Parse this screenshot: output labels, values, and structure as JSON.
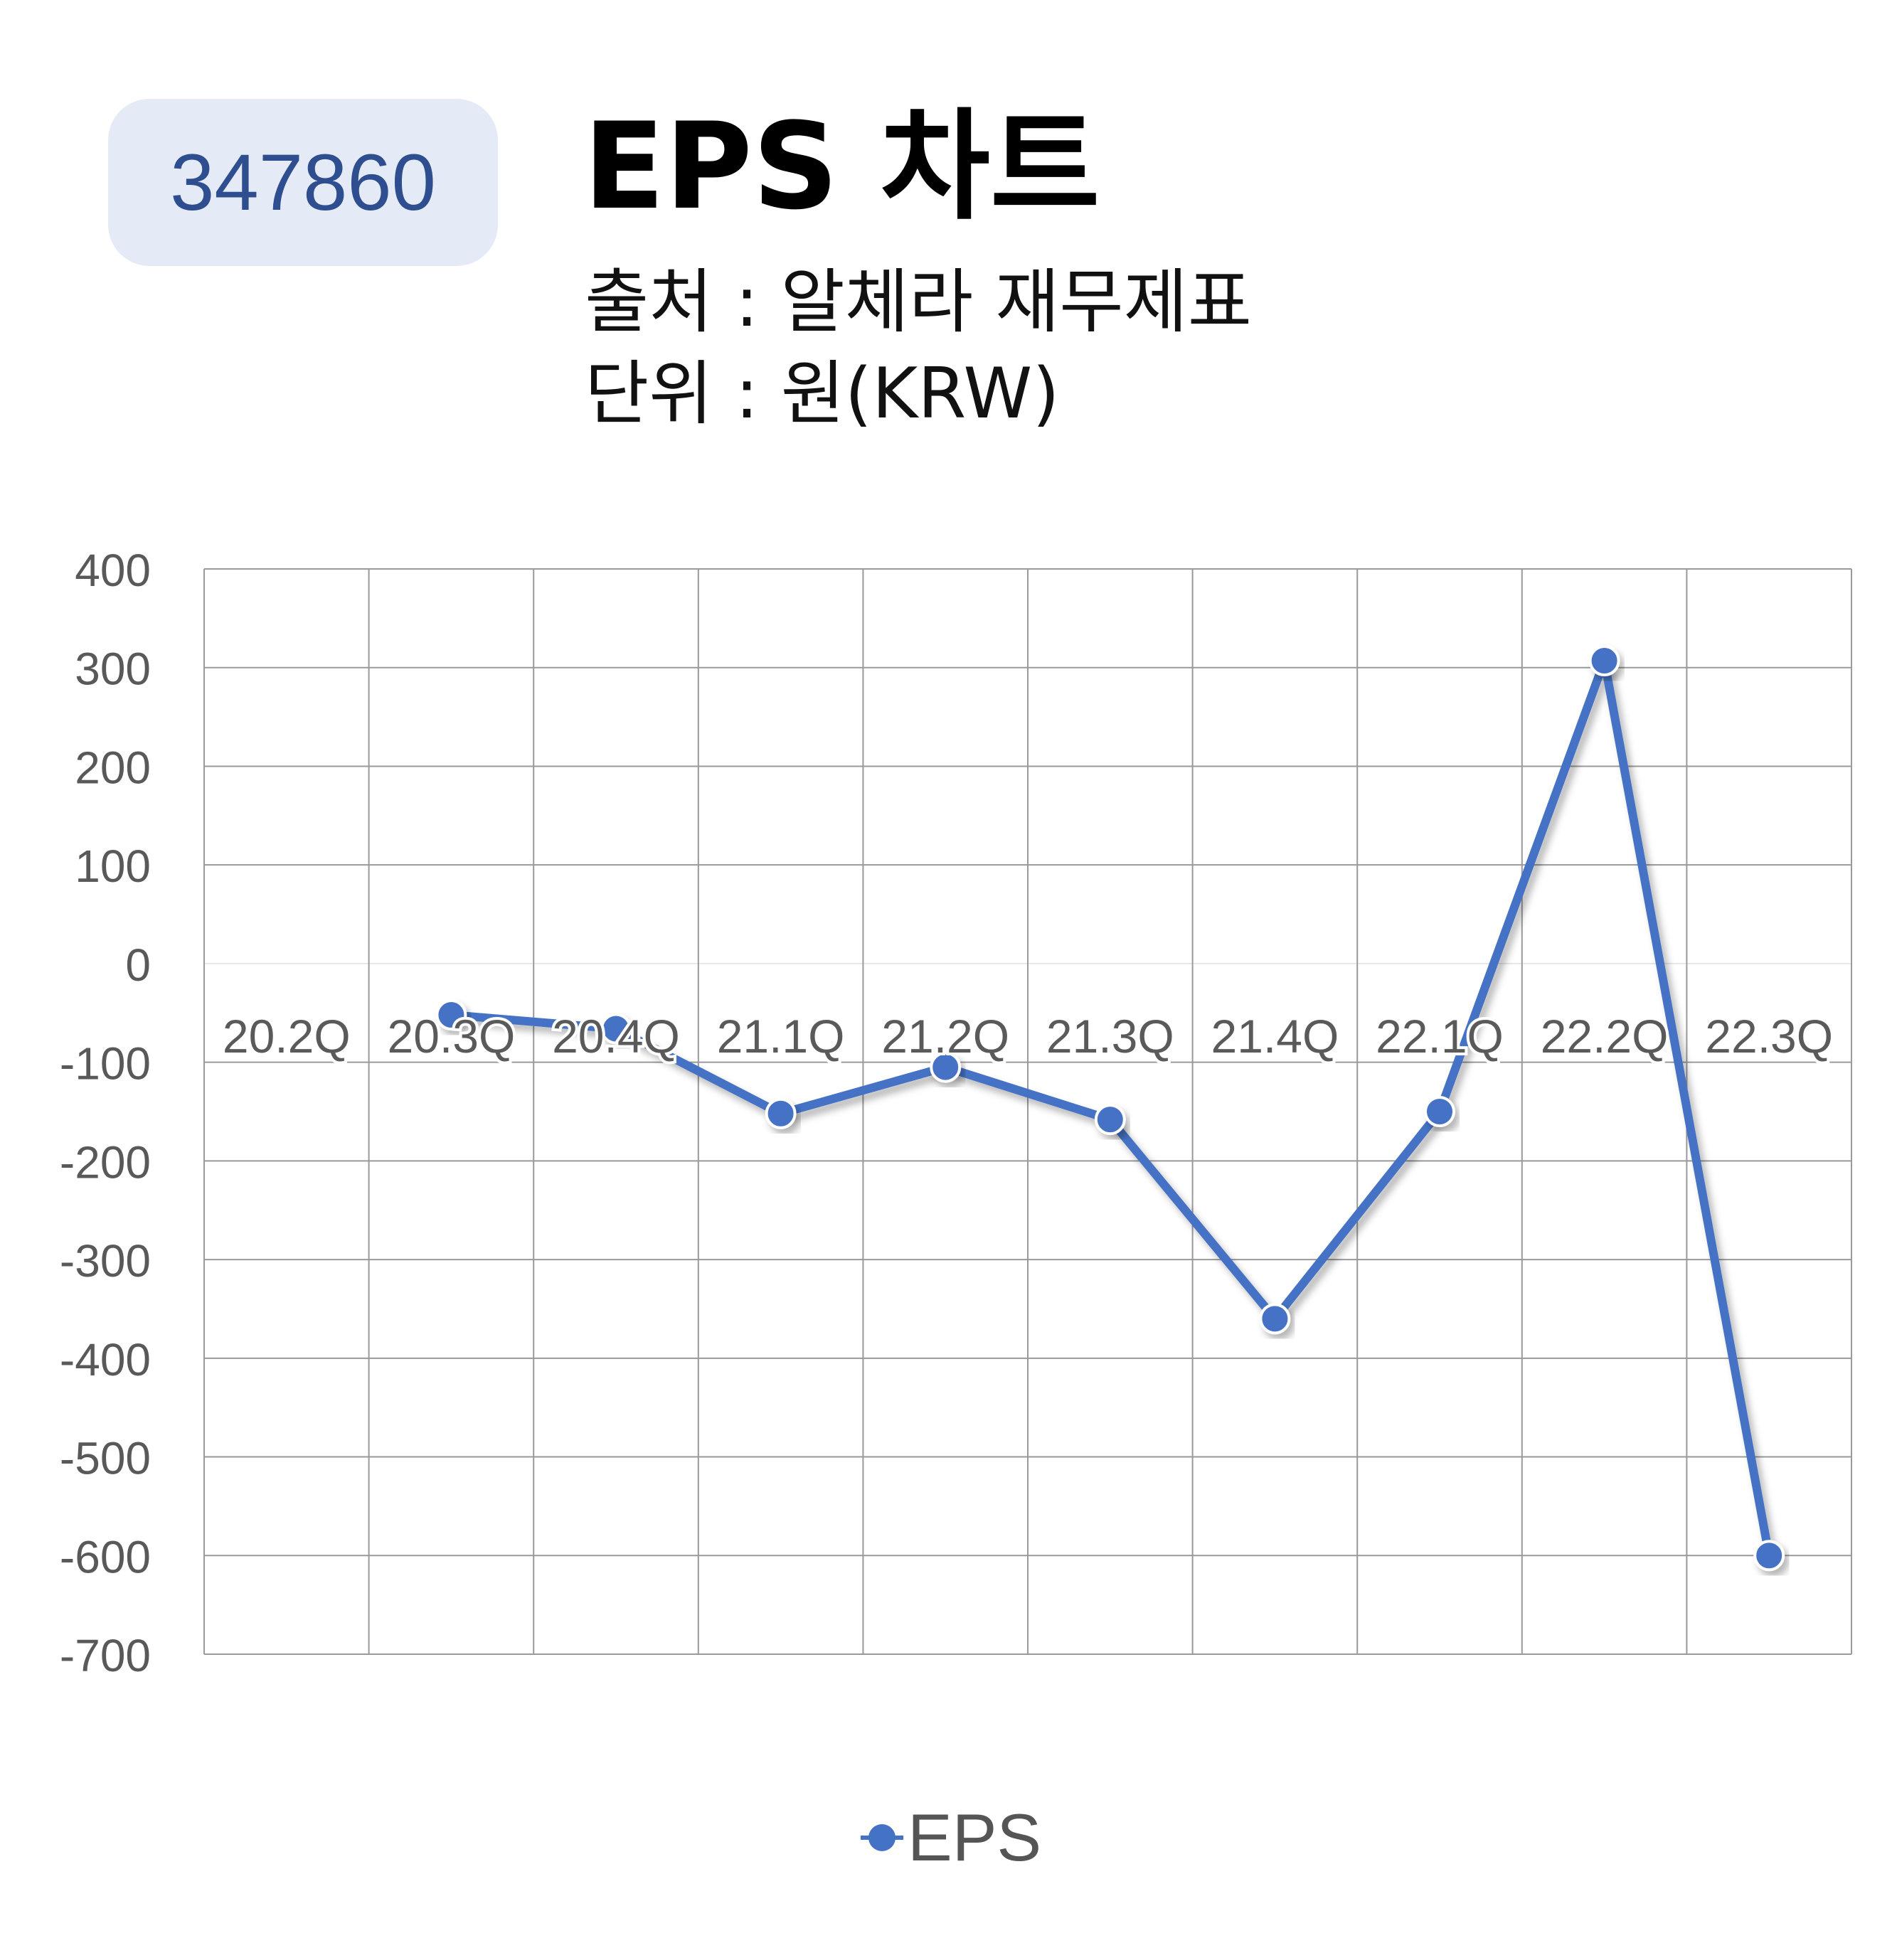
{
  "header": {
    "code": "347860",
    "title": "EPS 차트",
    "source": "출처 : 알체라 재무제표",
    "unit": "단위 : 원(KRW)"
  },
  "colors": {
    "series": "#4472c4",
    "badge_bg": "#e4eaf6",
    "badge_text": "#2e4e8f",
    "grid": "#9a9a9a",
    "axis_text": "#595959"
  },
  "chart_data": {
    "type": "line",
    "categories": [
      "20.2Q",
      "20.3Q",
      "20.4Q",
      "21.1Q",
      "21.2Q",
      "21.3Q",
      "21.4Q",
      "22.1Q",
      "22.2Q",
      "22.3Q"
    ],
    "series": [
      {
        "name": "EPS",
        "values": [
          null,
          -52,
          -66,
          -152,
          -105,
          -158,
          -360,
          -150,
          307,
          -600
        ]
      }
    ],
    "yticks": [
      400,
      300,
      200,
      100,
      0,
      -100,
      -200,
      -300,
      -400,
      -500,
      -600,
      -700
    ],
    "ylim": [
      -700,
      400
    ],
    "grid": true,
    "legend": "bottom"
  }
}
